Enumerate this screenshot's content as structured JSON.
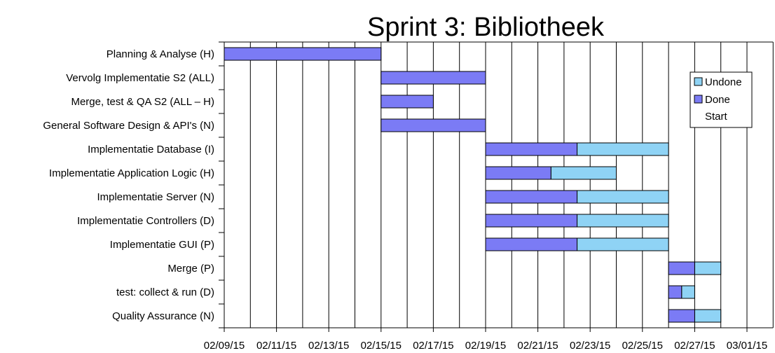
{
  "chart_data": {
    "type": "bar",
    "subtype": "gantt",
    "title": "Sprint 3: Bibliotheek",
    "x_ticks": [
      "02/09/15",
      "02/11/15",
      "02/13/15",
      "02/15/15",
      "02/17/15",
      "02/19/15",
      "02/21/15",
      "02/23/15",
      "02/25/15",
      "02/27/15",
      "03/01/15"
    ],
    "x_range": [
      "2015-02-09",
      "2015-03-02"
    ],
    "grid": "vertical, daily",
    "legend": {
      "placement": "top-right",
      "entries": [
        "Undone",
        "Done",
        "Start"
      ]
    },
    "colors": {
      "done": "#7b7bf5",
      "undone": "#8fd3f5",
      "grid": "#000000"
    },
    "tasks": [
      {
        "name": "Planning & Analyse (H)",
        "start": "2015-02-09",
        "done_until": "2015-02-15",
        "end": "2015-02-15"
      },
      {
        "name": "Vervolg Implementatie S2 (ALL)",
        "start": "2015-02-15",
        "done_until": "2015-02-19",
        "end": "2015-02-19"
      },
      {
        "name": "Merge, test & QA  S2 (ALL – H)",
        "start": "2015-02-15",
        "done_until": "2015-02-17",
        "end": "2015-02-17"
      },
      {
        "name": "General Software Design & API's (N)",
        "start": "2015-02-15",
        "done_until": "2015-02-19",
        "end": "2015-02-19"
      },
      {
        "name": "Implementatie  Database  (I)",
        "start": "2015-02-19",
        "done_until": "2015-02-22.5",
        "end": "2015-02-26"
      },
      {
        "name": "Implementatie  Application Logic  (H)",
        "start": "2015-02-19",
        "done_until": "2015-02-21.5",
        "end": "2015-02-24"
      },
      {
        "name": "Implementatie  Server  (N)",
        "start": "2015-02-19",
        "done_until": "2015-02-22.5",
        "end": "2015-02-26"
      },
      {
        "name": "Implementatie  Controllers  (D)",
        "start": "2015-02-19",
        "done_until": "2015-02-22.5",
        "end": "2015-02-26"
      },
      {
        "name": "Implementatie  GUI  (P)",
        "start": "2015-02-19",
        "done_until": "2015-02-22.5",
        "end": "2015-02-26"
      },
      {
        "name": "Merge  (P)",
        "start": "2015-02-26",
        "done_until": "2015-02-27",
        "end": "2015-02-28"
      },
      {
        "name": "test: collect & run (D)",
        "start": "2015-02-26",
        "done_until": "2015-02-26.5",
        "end": "2015-02-27"
      },
      {
        "name": "Quality  Assurance  (N)",
        "start": "2015-02-26",
        "done_until": "2015-02-27",
        "end": "2015-02-28"
      }
    ]
  }
}
